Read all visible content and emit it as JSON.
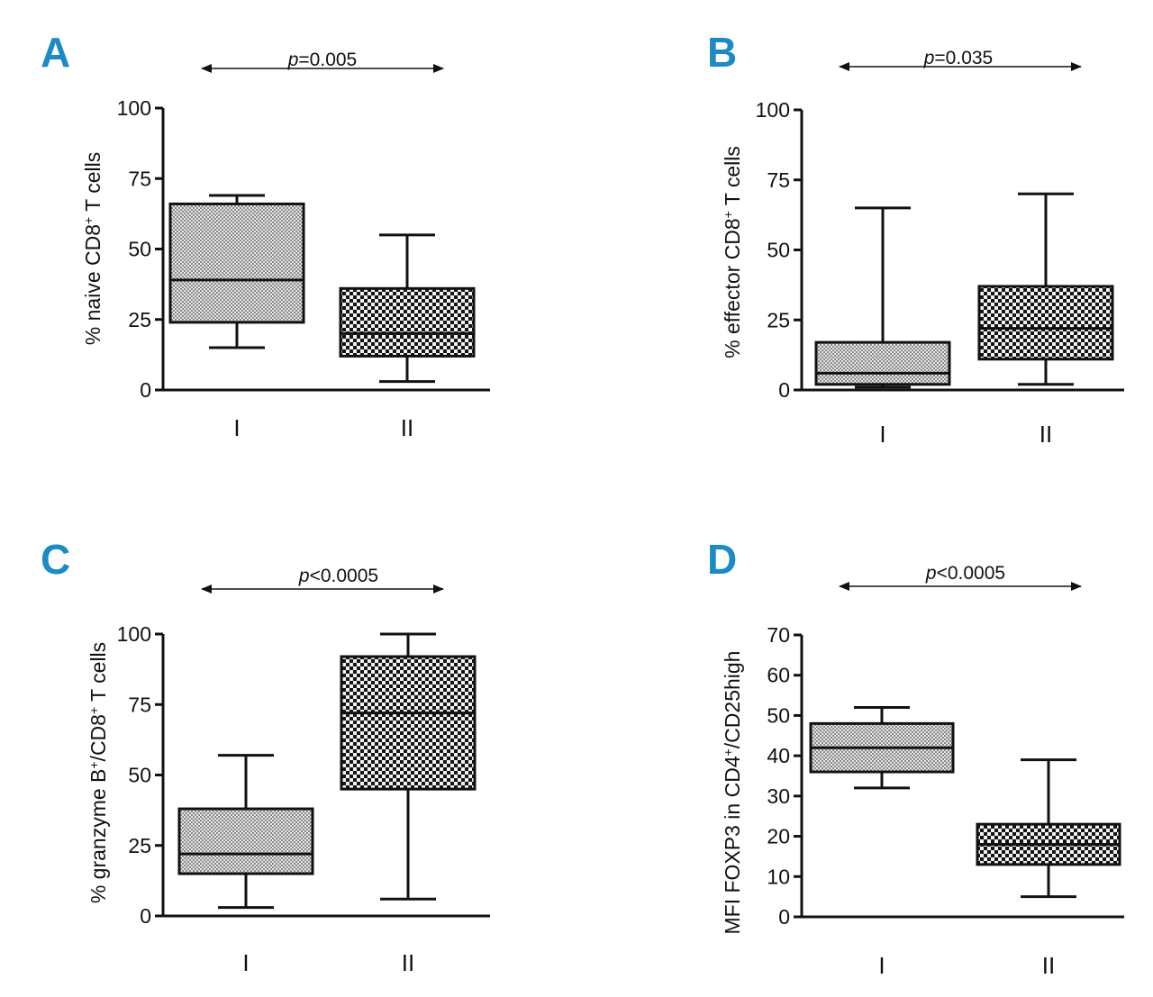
{
  "chart_data": [
    {
      "panel": "A",
      "type": "box",
      "pvalue_prefix": "p",
      "pvalue_rest": "=0.005",
      "ylabel": "% naive CD8+ T cells",
      "ylabel_main": "% naive CD8",
      "ylabel_sup": "+",
      "ylabel_tail": " T cells",
      "yticks": [
        0,
        25,
        50,
        75,
        100
      ],
      "ylim": [
        0,
        100
      ],
      "categories": [
        "I",
        "II"
      ],
      "boxes": [
        {
          "group": "I",
          "min": 15,
          "q1": 24,
          "median": 39,
          "q3": 66,
          "max": 69,
          "pattern": "fine"
        },
        {
          "group": "II",
          "min": 3,
          "q1": 12,
          "median": 20,
          "q3": 36,
          "max": 55,
          "pattern": "coarse"
        }
      ]
    },
    {
      "panel": "B",
      "type": "box",
      "pvalue_prefix": "p",
      "pvalue_rest": "=0.035",
      "ylabel": "% effector CD8+ T cells",
      "ylabel_main": "% effector CD8",
      "ylabel_sup": "+",
      "ylabel_tail": " T cells",
      "yticks": [
        0,
        25,
        50,
        75,
        100
      ],
      "ylim": [
        0,
        100
      ],
      "categories": [
        "I",
        "II"
      ],
      "boxes": [
        {
          "group": "I",
          "min": 1,
          "q1": 2,
          "median": 6,
          "q3": 17,
          "max": 65,
          "pattern": "fine"
        },
        {
          "group": "II",
          "min": 2,
          "q1": 11,
          "median": 22,
          "q3": 37,
          "max": 70,
          "pattern": "coarse"
        }
      ]
    },
    {
      "panel": "C",
      "type": "box",
      "pvalue_prefix": "p",
      "pvalue_rest": "<0.0005",
      "ylabel": "% granzyme B+/CD8+ T cells",
      "ylabel_main": "% granzyme B",
      "ylabel_sup": "+",
      "ylabel_mid": "/CD8",
      "ylabel_sup2": "+",
      "ylabel_tail": " T cells",
      "yticks": [
        0,
        25,
        50,
        75,
        100
      ],
      "ylim": [
        0,
        100
      ],
      "categories": [
        "I",
        "II"
      ],
      "boxes": [
        {
          "group": "I",
          "min": 3,
          "q1": 15,
          "median": 22,
          "q3": 38,
          "max": 57,
          "pattern": "fine"
        },
        {
          "group": "II",
          "min": 6,
          "q1": 45,
          "median": 72,
          "q3": 92,
          "max": 100,
          "pattern": "coarse"
        }
      ]
    },
    {
      "panel": "D",
      "type": "box",
      "pvalue_prefix": "p",
      "pvalue_rest": "<0.0005",
      "ylabel": "MFI FOXP3 in CD4+/CD25high",
      "ylabel_main": "MFI FOXP3 in CD4",
      "ylabel_sup": "+",
      "ylabel_tail": "/CD25high",
      "yticks": [
        0,
        10,
        20,
        30,
        40,
        50,
        60,
        70
      ],
      "ylim": [
        0,
        70
      ],
      "categories": [
        "I",
        "II"
      ],
      "boxes": [
        {
          "group": "I",
          "min": 32,
          "q1": 36,
          "median": 42,
          "q3": 48,
          "max": 52,
          "pattern": "fine"
        },
        {
          "group": "II",
          "min": 5,
          "q1": 13,
          "median": 18,
          "q3": 23,
          "max": 39,
          "pattern": "coarse"
        }
      ]
    }
  ],
  "colors": {
    "panel_letter": "#1b8ac5",
    "ink": "#111111",
    "fine_fill_a": "#8a8a8a",
    "fine_fill_b": "#e6e6e6",
    "coarse_fill_a": "#151515",
    "coarse_fill_b": "#f2f2f2"
  }
}
